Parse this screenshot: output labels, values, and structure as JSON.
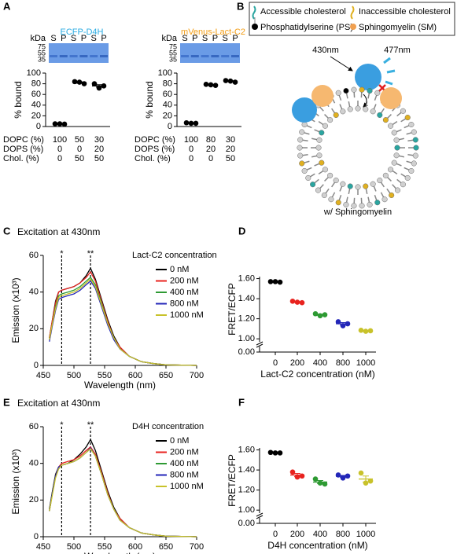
{
  "panel_labels": [
    "A",
    "B",
    "C",
    "D",
    "E",
    "F"
  ],
  "diagram": {
    "legend": [
      "Accessible cholesterol",
      "Inaccessible cholesterol",
      "Phosphatidylserine (PS)",
      "Sphingomyelin (SM)"
    ],
    "excitation": "430nm",
    "emission": "477nm",
    "caption": "w/ Sphingomyelin"
  },
  "chart_data": [
    {
      "type": "dot",
      "title": "ECFP-D4H",
      "title_color": "#29abe2",
      "ylabel": "% bound",
      "ylim": [
        0,
        100
      ],
      "yticks": [
        0,
        20,
        40,
        60,
        80,
        100
      ],
      "color": "#000000",
      "gel": {
        "unit": "kDa",
        "markers": [
          75,
          55,
          35
        ],
        "lanes": [
          "S",
          "P",
          "S",
          "P",
          "S",
          "P"
        ]
      },
      "composition": {
        "labels": [
          "DOPC (%)",
          "DOPS (%)",
          "Chol. (%)"
        ],
        "rows": [
          [
            100,
            50,
            30
          ],
          [
            0,
            0,
            20
          ],
          [
            0,
            50,
            50
          ]
        ]
      },
      "replicates": [
        [
          5,
          5,
          4.5
        ],
        [
          84,
          83,
          80
        ],
        [
          80,
          72,
          76
        ]
      ],
      "means": [
        4.8,
        82.3,
        76
      ],
      "errors": [
        0.2,
        1.2,
        2.3
      ]
    },
    {
      "type": "dot",
      "title": "mVenus-Lact-C2",
      "title_color": "#f39c12",
      "ylabel": "% bound",
      "ylim": [
        0,
        100
      ],
      "yticks": [
        0,
        20,
        40,
        60,
        80,
        100
      ],
      "color": "#000000",
      "gel": {
        "unit": "kDa",
        "markers": [
          75,
          55,
          35
        ],
        "lanes": [
          "S",
          "P",
          "S",
          "P",
          "S",
          "P"
        ]
      },
      "composition": {
        "labels": [
          "DOPC (%)",
          "DOPS (%)",
          "Chol. (%)"
        ],
        "rows": [
          [
            100,
            80,
            30
          ],
          [
            0,
            20,
            20
          ],
          [
            0,
            0,
            50
          ]
        ]
      },
      "replicates": [
        [
          7,
          6,
          6
        ],
        [
          79,
          78,
          77
        ],
        [
          86,
          85,
          83
        ]
      ],
      "means": [
        6.3,
        78,
        84.7
      ],
      "errors": [
        0.3,
        0.6,
        0.9
      ]
    },
    {
      "type": "line",
      "title": "Excitation at 430nm",
      "legend_title": "Lact-C2 concentration",
      "xlabel": "Wavelength (nm)",
      "ylabel": "Emission (x10³)",
      "xlim": [
        450,
        700
      ],
      "xticks": [
        450,
        500,
        550,
        600,
        650,
        700
      ],
      "ylim": [
        0,
        60
      ],
      "yticks": [
        0,
        20,
        40,
        60
      ],
      "annotations": [
        {
          "x": 480,
          "label": "*"
        },
        {
          "x": 527,
          "label": "**"
        }
      ],
      "x": [
        460,
        465,
        470,
        475,
        480,
        490,
        500,
        510,
        520,
        527,
        535,
        545,
        555,
        565,
        575,
        590,
        610,
        630,
        650,
        700
      ],
      "series": [
        {
          "name": "0 nM",
          "color": "#000000",
          "values": [
            15,
            25,
            35,
            40,
            41,
            42,
            43,
            45,
            49,
            53,
            47,
            36,
            25,
            16,
            10,
            5,
            2,
            1,
            0.3,
            0
          ]
        },
        {
          "name": "200 nM",
          "color": "#e8231f",
          "values": [
            15,
            25,
            34,
            40,
            41,
            42,
            43,
            45,
            48,
            51,
            46,
            35,
            24,
            15,
            10,
            5,
            2,
            1,
            0.3,
            0
          ]
        },
        {
          "name": "400 nM",
          "color": "#2e9a33",
          "values": [
            14,
            23,
            32,
            38,
            39,
            40,
            41,
            43,
            46,
            48,
            44,
            34,
            23,
            15,
            9,
            5,
            2,
            1,
            0.3,
            0
          ]
        },
        {
          "name": "800 nM",
          "color": "#2326b8",
          "values": [
            13,
            22,
            30,
            36,
            37,
            38,
            39,
            41,
            44,
            46,
            42,
            32,
            22,
            14,
            9,
            5,
            2,
            1,
            0.3,
            0
          ]
        },
        {
          "name": "1000 nM",
          "color": "#c8c22a",
          "values": [
            14,
            23,
            31,
            37,
            38,
            39,
            40,
            42,
            45,
            47,
            43,
            33,
            23,
            15,
            9,
            5,
            2,
            1,
            0.3,
            0
          ]
        }
      ]
    },
    {
      "type": "dot",
      "ylabel": "FRET/ECFP",
      "xlabel": "Lact-C2 concentration (nM)",
      "categories": [
        "0",
        "200",
        "400",
        "800",
        "1000"
      ],
      "colors": [
        "#000000",
        "#e8231f",
        "#2e9a33",
        "#2326b8",
        "#c8c22a"
      ],
      "ylim": [
        0.97,
        1.62
      ],
      "yticks": [
        {
          "value": 1,
          "label": "1.00"
        },
        {
          "value": 1.2,
          "label": "1.20"
        },
        {
          "value": 1.4,
          "label": "1.40"
        },
        {
          "value": 1.6,
          "label": "1.60"
        }
      ],
      "break_tick": {
        "value": 0,
        "label": "0.00"
      },
      "replicates": [
        [
          1.57,
          1.57,
          1.565
        ],
        [
          1.375,
          1.365,
          1.36
        ],
        [
          1.25,
          1.23,
          1.24
        ],
        [
          1.17,
          1.13,
          1.15
        ],
        [
          1.085,
          1.075,
          1.08
        ]
      ],
      "means": [
        1.568,
        1.367,
        1.24,
        1.15,
        1.08
      ],
      "errors": [
        0.002,
        0.004,
        0.006,
        0.012,
        0.003
      ]
    },
    {
      "type": "line",
      "title": "Excitation at 430nm",
      "legend_title": "D4H concentration",
      "xlabel": "Wavelength (nm)",
      "ylabel": "Emission (x10³)",
      "xlim": [
        450,
        700
      ],
      "xticks": [
        450,
        500,
        550,
        600,
        650,
        700
      ],
      "ylim": [
        0,
        60
      ],
      "yticks": [
        0,
        20,
        40,
        60
      ],
      "annotations": [
        {
          "x": 480,
          "label": "*"
        },
        {
          "x": 527,
          "label": "**"
        }
      ],
      "x": [
        460,
        465,
        470,
        475,
        480,
        490,
        500,
        510,
        520,
        527,
        535,
        545,
        555,
        565,
        575,
        590,
        610,
        630,
        650,
        700
      ],
      "series": [
        {
          "name": "0 nM",
          "color": "#000000",
          "values": [
            15,
            25,
            34,
            38,
            39,
            40,
            42,
            45,
            49,
            53,
            47,
            36,
            25,
            16,
            10,
            5,
            2,
            1,
            0.3,
            0
          ]
        },
        {
          "name": "200 nM",
          "color": "#e8231f",
          "values": [
            14,
            24,
            33,
            38,
            40,
            41,
            42,
            44,
            47,
            49,
            45,
            35,
            24,
            15,
            10,
            5,
            2,
            1,
            0.3,
            0
          ]
        },
        {
          "name": "400 nM",
          "color": "#2e9a33",
          "values": [
            14,
            24,
            33,
            37,
            39,
            40,
            41,
            43,
            46,
            48,
            44,
            34,
            23,
            15,
            9,
            5,
            2,
            1,
            0.3,
            0
          ]
        },
        {
          "name": "800 nM",
          "color": "#2326b8",
          "values": [
            14,
            24,
            33,
            38,
            39,
            40,
            41,
            43,
            46,
            48.5,
            44,
            34,
            23,
            15,
            9,
            5,
            2,
            1,
            0.3,
            0
          ]
        },
        {
          "name": "1000 nM",
          "color": "#c8c22a",
          "values": [
            14,
            23,
            32,
            37,
            39,
            40,
            41,
            43,
            46,
            48,
            44,
            34,
            23,
            15,
            9,
            5,
            2,
            1,
            0.3,
            0
          ]
        }
      ]
    },
    {
      "type": "dot",
      "ylabel": "FRET/ECFP",
      "xlabel": "D4H concentration (nM)",
      "categories": [
        "0",
        "200",
        "400",
        "800",
        "1000"
      ],
      "colors": [
        "#000000",
        "#e8231f",
        "#2e9a33",
        "#2326b8",
        "#c8c22a"
      ],
      "ylim": [
        0.97,
        1.62
      ],
      "yticks": [
        {
          "value": 1,
          "label": "1.00"
        },
        {
          "value": 1.2,
          "label": "1.20"
        },
        {
          "value": 1.4,
          "label": "1.40"
        },
        {
          "value": 1.6,
          "label": "1.60"
        }
      ],
      "break_tick": {
        "value": 0,
        "label": "0.00"
      },
      "replicates": [
        [
          1.575,
          1.57,
          1.57
        ],
        [
          1.38,
          1.33,
          1.34
        ],
        [
          1.31,
          1.27,
          1.26
        ],
        [
          1.35,
          1.32,
          1.34
        ],
        [
          1.37,
          1.27,
          1.29
        ]
      ],
      "means": [
        1.572,
        1.35,
        1.28,
        1.337,
        1.31
      ],
      "errors": [
        0.002,
        0.015,
        0.015,
        0.009,
        0.03
      ]
    }
  ]
}
